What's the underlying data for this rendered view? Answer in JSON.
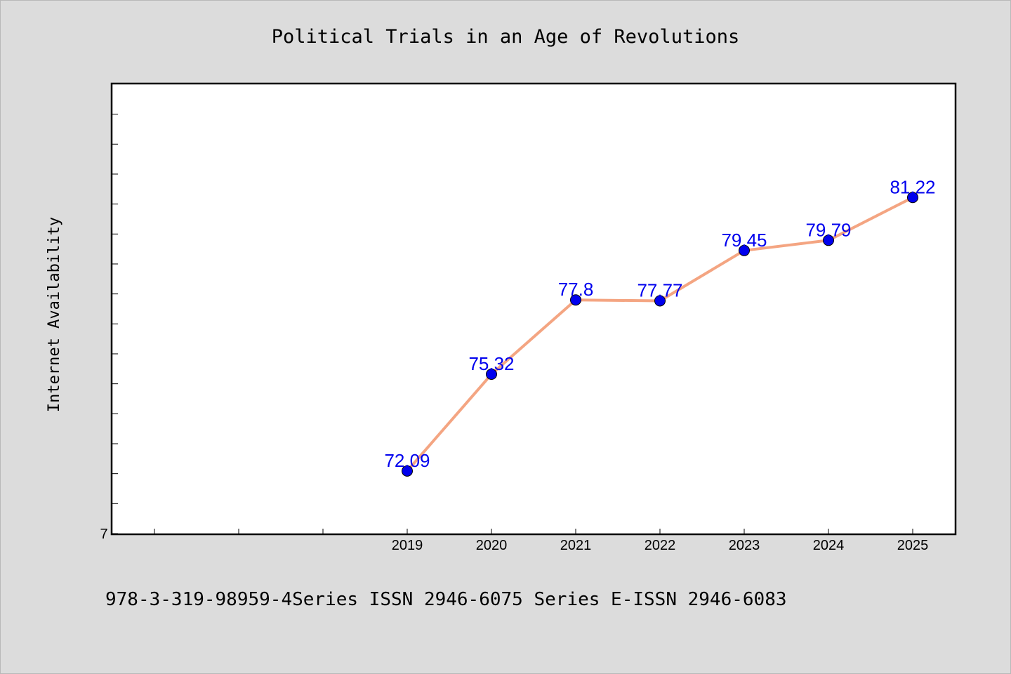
{
  "chart_data": {
    "type": "line",
    "title": "Political Trials in an Age of Revolutions",
    "ylabel": "Internet Availability",
    "xlabel": "",
    "categories": [
      "2019",
      "2020",
      "2021",
      "2022",
      "2023",
      "2024",
      "2025"
    ],
    "series": [
      {
        "values": [
          72.09,
          75.32,
          77.8,
          77.77,
          79.45,
          79.79,
          81.22
        ]
      }
    ],
    "y_tick_labels": [
      "7"
    ],
    "ylim": [
      70,
      85
    ],
    "grid": false,
    "colors": {
      "line": "#f4a582",
      "marker": "#0000ee",
      "data_label": "#0000ee"
    }
  },
  "footer": {
    "text": "978-3-319-98959-4Series ISSN 2946-6075 Series E-ISSN 2946-6083"
  }
}
